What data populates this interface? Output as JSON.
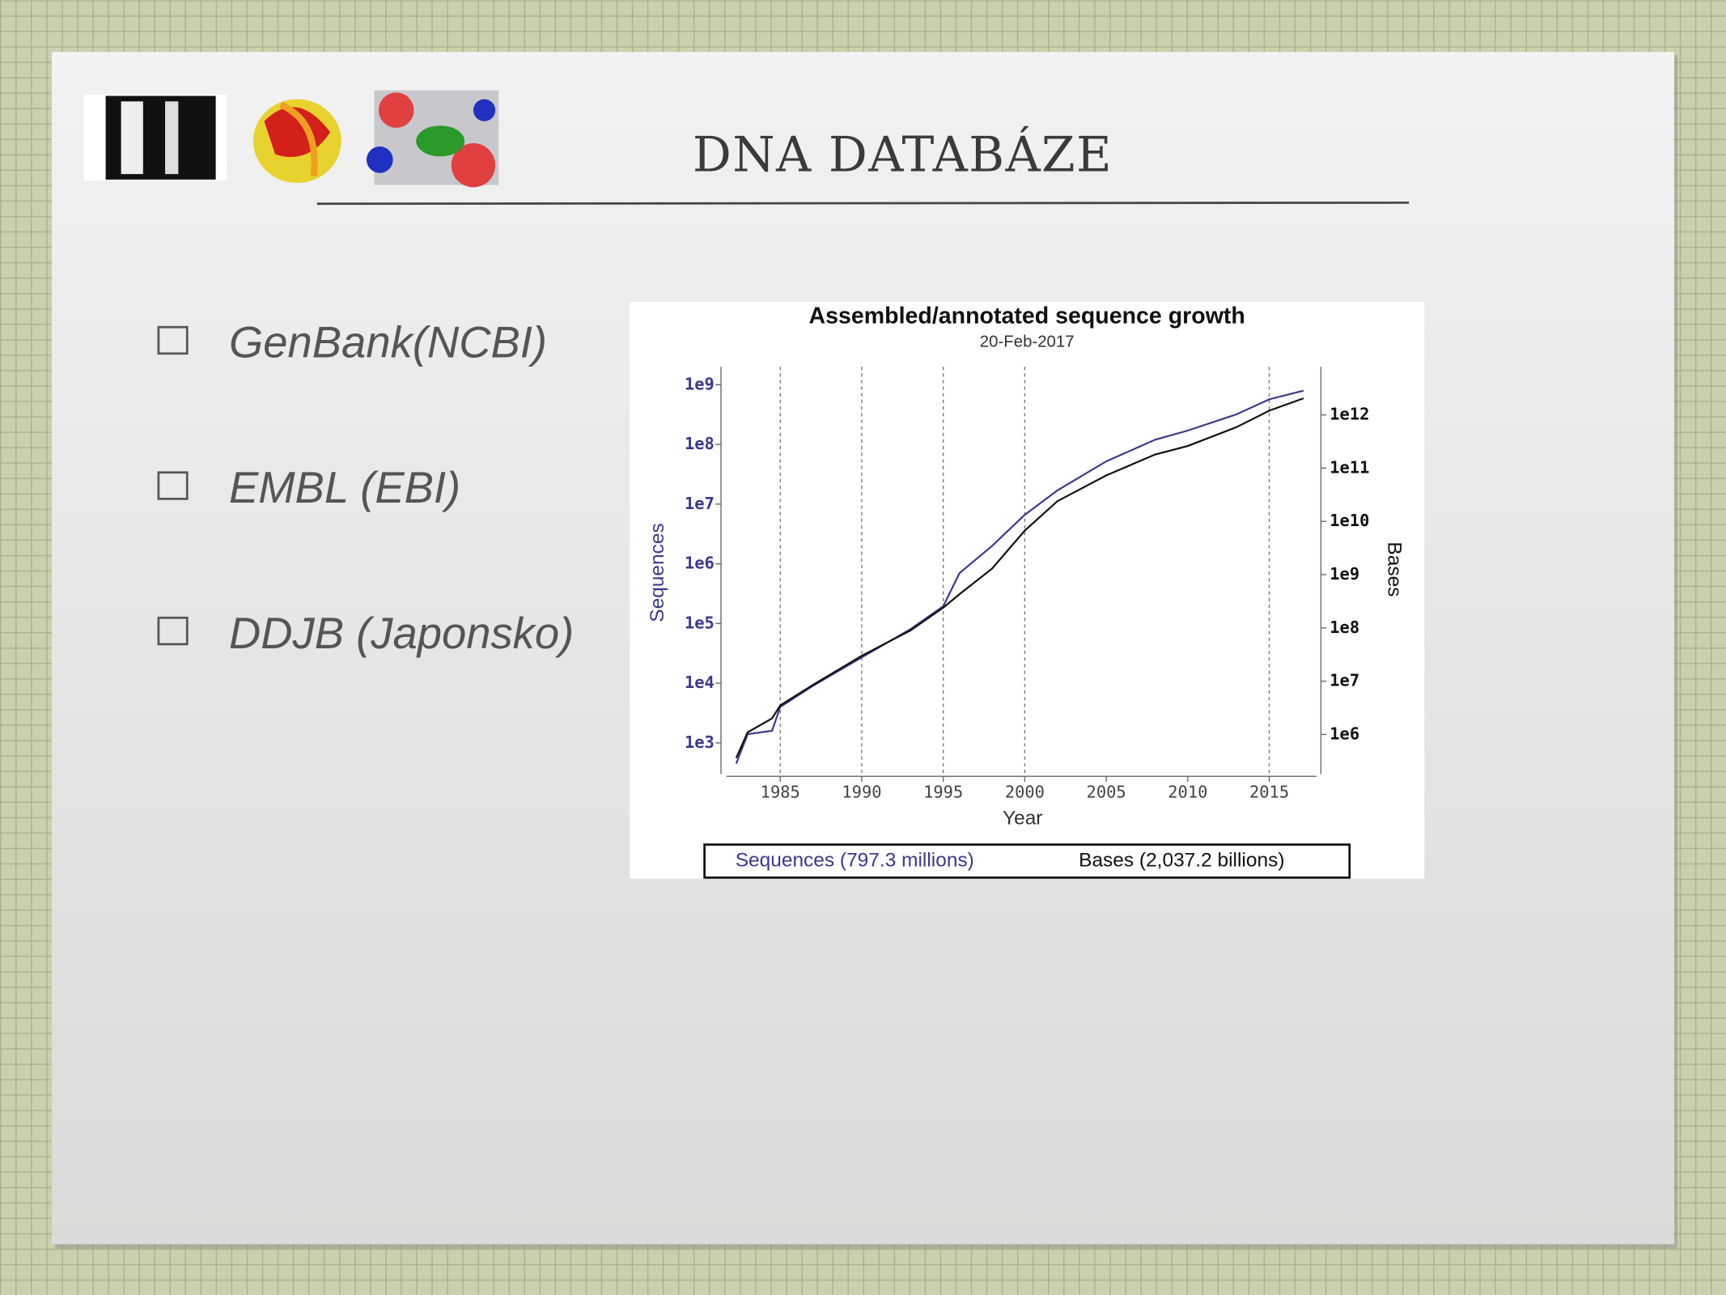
{
  "slide": {
    "title": "DNA DATABÁZE",
    "bullets": [
      "GenBank(NCBI)",
      "EMBL (EBI)",
      "DDJB (Japonsko)"
    ]
  },
  "chart_data": {
    "type": "line",
    "title": "Assembled/annotated sequence growth",
    "subtitle": "20-Feb-2017",
    "xlabel": "Year",
    "ylabel": "Sequences",
    "y2label": "Bases",
    "log_scale": true,
    "x": [
      1982.3,
      1983,
      1984.5,
      1985,
      1987,
      1990,
      1993,
      1995,
      1996,
      1998,
      2000,
      2002,
      2005,
      2008,
      2010,
      2013,
      2015,
      2017.1
    ],
    "series": [
      {
        "name": "Sequences (797.3 millions)",
        "color": "#3a3a8c",
        "values": [
          450,
          1400,
          1600,
          4000,
          9000,
          27000,
          81000,
          195000,
          700000,
          2000000,
          6600000,
          17000000,
          52000000,
          120000000,
          170000000,
          320000000,
          570000000,
          797300000
        ]
      },
      {
        "name": "Bases (2,037.2 billions)",
        "color": "#111111",
        "axis": "y2",
        "values": [
          360000,
          1100000,
          2000000,
          3500000,
          8500000,
          30000000,
          90000000,
          240000000,
          430000000,
          1300000000,
          6700000000,
          24000000000,
          73000000000,
          180000000000,
          260000000000,
          590000000000,
          1200000000000,
          2037200000000
        ]
      }
    ],
    "xlim": [
      1981.5,
      2017.9
    ],
    "xticks": [
      1985,
      1990,
      1995,
      2000,
      2005,
      2010,
      2015
    ],
    "xgrid": [
      1985,
      1990,
      1995,
      2000,
      2015
    ],
    "ylim": [
      300,
      2000000000
    ],
    "yticks": [
      {
        "value": 1000,
        "label": "1e3"
      },
      {
        "value": 10000,
        "label": "1e4"
      },
      {
        "value": 100000,
        "label": "1e5"
      },
      {
        "value": 1000000,
        "label": "1e6"
      },
      {
        "value": 10000000,
        "label": "1e7"
      },
      {
        "value": 100000000,
        "label": "1e8"
      },
      {
        "value": 1000000000,
        "label": "1e9"
      }
    ],
    "y2lim": [
      180000,
      8000000000000
    ],
    "y2ticks": [
      {
        "value": 1000000,
        "label": "1e6"
      },
      {
        "value": 10000000,
        "label": "1e7"
      },
      {
        "value": 100000000,
        "label": "1e8"
      },
      {
        "value": 1000000000,
        "label": "1e9"
      },
      {
        "value": 10000000000,
        "label": "1e10"
      },
      {
        "value": 100000000000,
        "label": "1e11"
      },
      {
        "value": 1000000000000,
        "label": "1e12"
      }
    ]
  }
}
